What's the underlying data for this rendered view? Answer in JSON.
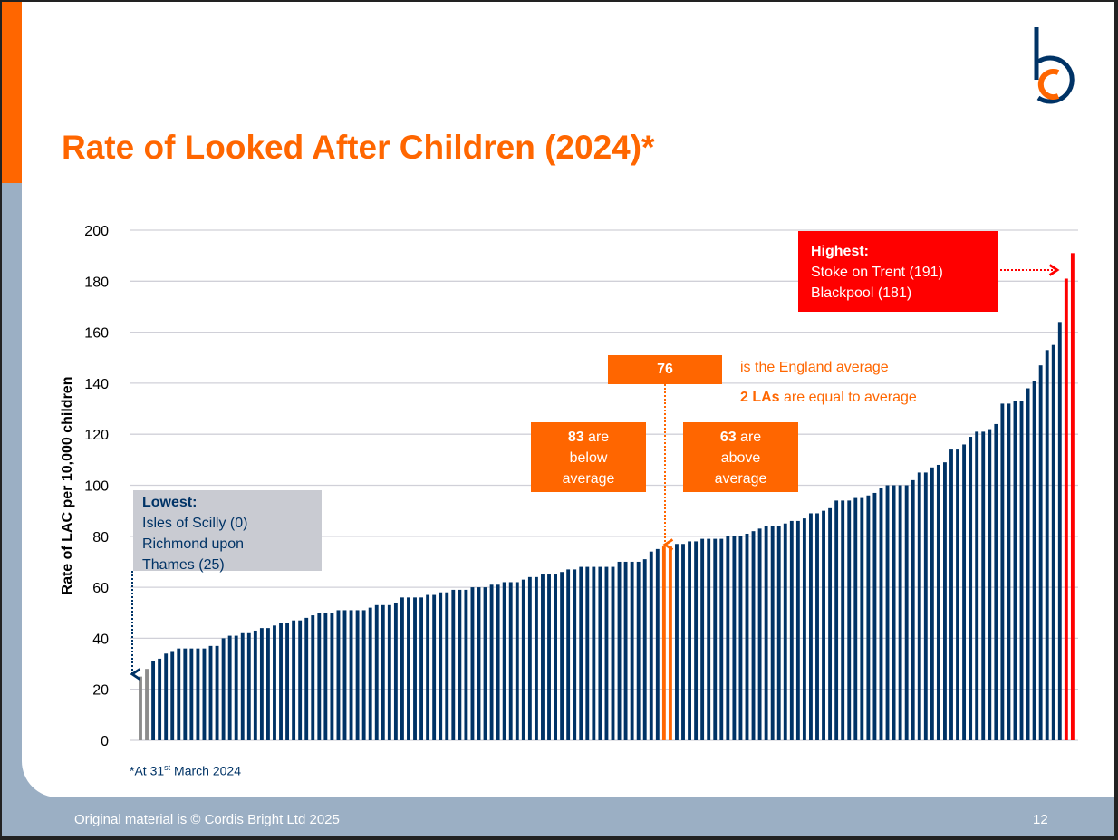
{
  "slide": {
    "title": "Rate of Looked After Children (2024)*",
    "footer": "Original material is © Cordis Bright Ltd 2025",
    "page_number": "12",
    "footnote_pre": "*At 31",
    "footnote_sup": "st",
    "footnote_post": " March 2024",
    "logo_text": "bc"
  },
  "annotations": {
    "lowest_title": "Lowest:",
    "lowest_lines": [
      "Isles of Scilly (0)",
      "Richmond upon",
      "Thames (25)"
    ],
    "average_value": "76",
    "average_text": "is the England average",
    "equal_bold": "2 LAs",
    "equal_text": " are equal to average",
    "below_bold": "83",
    "below_text1": " are",
    "below_text2": "below",
    "below_text3": "average",
    "above_bold": "63",
    "above_text1": " are",
    "above_text2": "above",
    "above_text3": "average",
    "highest_title": "Highest:",
    "highest_lines": [
      "Stoke on Trent (191)",
      "Blackpool (181)"
    ]
  },
  "colors": {
    "navy": "#003366",
    "orange": "#FF6600",
    "red": "#FF0000",
    "grey": "#8C8C8C"
  },
  "chart_data": {
    "type": "bar",
    "title": "Rate of Looked After Children (2024)*",
    "xlabel": "",
    "ylabel": "Rate of LAC per 10,000 children",
    "ylim": [
      0,
      200
    ],
    "yticks": [
      0,
      20,
      40,
      60,
      80,
      100,
      120,
      140,
      160,
      180,
      200
    ],
    "grid": true,
    "england_average": 76,
    "values": [
      0,
      25,
      28,
      31,
      32,
      34,
      35,
      36,
      36,
      36,
      36,
      36,
      37,
      37,
      40,
      41,
      41,
      42,
      42,
      43,
      44,
      44,
      45,
      46,
      46,
      47,
      47,
      48,
      49,
      50,
      50,
      50,
      51,
      51,
      51,
      51,
      51,
      52,
      53,
      53,
      53,
      54,
      56,
      56,
      56,
      56,
      57,
      57,
      58,
      58,
      59,
      59,
      59,
      60,
      60,
      60,
      61,
      61,
      62,
      62,
      62,
      63,
      64,
      64,
      65,
      65,
      65,
      66,
      67,
      67,
      68,
      68,
      68,
      68,
      68,
      68,
      70,
      70,
      70,
      70,
      71,
      74,
      75,
      76,
      76,
      77,
      77,
      78,
      78,
      79,
      79,
      79,
      79,
      80,
      80,
      80,
      81,
      82,
      83,
      84,
      84,
      84,
      85,
      86,
      86,
      87,
      89,
      89,
      90,
      91,
      94,
      94,
      94,
      95,
      95,
      96,
      97,
      99,
      100,
      100,
      100,
      100,
      102,
      105,
      105,
      107,
      108,
      109,
      114,
      114,
      116,
      119,
      121,
      121,
      122,
      124,
      132,
      132,
      133,
      133,
      138,
      141,
      147,
      153,
      155,
      164,
      181,
      191
    ]
  }
}
